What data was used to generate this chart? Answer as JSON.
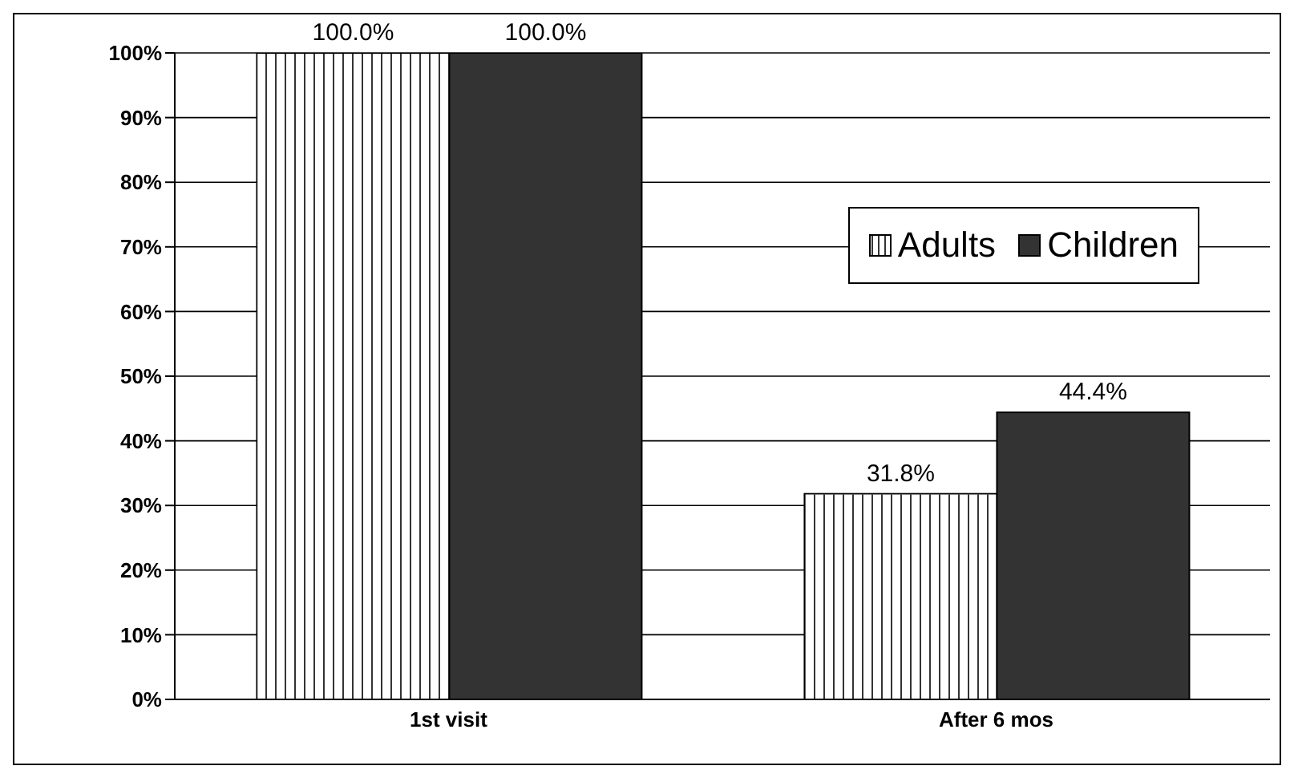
{
  "chart_data": {
    "type": "bar",
    "categories": [
      "1st visit",
      "After 6 mos"
    ],
    "series": [
      {
        "name": "Adults",
        "color": "#ffffff",
        "values": [
          100,
          31.8
        ],
        "value_labels": [
          "100.0%",
          "31.8%"
        ]
      },
      {
        "name": "Children",
        "color": "#333333",
        "values": [
          100,
          44.4
        ],
        "value_labels": [
          "100.0%",
          "44.4%"
        ]
      }
    ],
    "ylim": [
      0,
      100
    ],
    "yticks": [
      {
        "value": 0,
        "label": "0%"
      },
      {
        "value": 10,
        "label": "10%"
      },
      {
        "value": 20,
        "label": "20%"
      },
      {
        "value": 30,
        "label": "30%"
      },
      {
        "value": 40,
        "label": "40%"
      },
      {
        "value": 50,
        "label": "50%"
      },
      {
        "value": 60,
        "label": "60%"
      },
      {
        "value": 70,
        "label": "70%"
      },
      {
        "value": 80,
        "label": "80%"
      },
      {
        "value": 90,
        "label": "90%"
      },
      {
        "value": 100,
        "label": "100%"
      }
    ],
    "grid": "y",
    "legend": "top right"
  }
}
